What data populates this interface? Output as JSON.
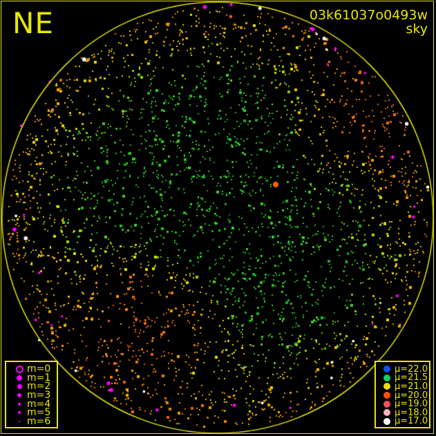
{
  "direction_label": "NE",
  "title": {
    "id": "03k61037o0493w",
    "subtitle": "sky"
  },
  "colors": {
    "frame": "#e8e800",
    "background": "#000000",
    "magnitude_symbol": "#ff00ff"
  },
  "magnitude_legend": [
    {
      "label": "m=0",
      "size": 9,
      "hollow": true
    },
    {
      "label": "m=1",
      "size": 8
    },
    {
      "label": "m=2",
      "size": 7
    },
    {
      "label": "m=3",
      "size": 6
    },
    {
      "label": "m=4",
      "size": 4
    },
    {
      "label": "m=5",
      "size": 4
    },
    {
      "label": "m=6",
      "size": 2
    }
  ],
  "surface_brightness_legend": [
    {
      "label": "μ=22.0",
      "color": "#1450f0"
    },
    {
      "label": "μ=21.5",
      "color": "#10d060"
    },
    {
      "label": "μ=21.0",
      "color": "#f0d800"
    },
    {
      "label": "μ=20.0",
      "color": "#ff5010"
    },
    {
      "label": "μ=19.0",
      "color": "#f05060"
    },
    {
      "label": "μ=18.0",
      "color": "#f8b0c0"
    },
    {
      "label": "μ=17.0",
      "color": "#ffffff"
    }
  ]
}
